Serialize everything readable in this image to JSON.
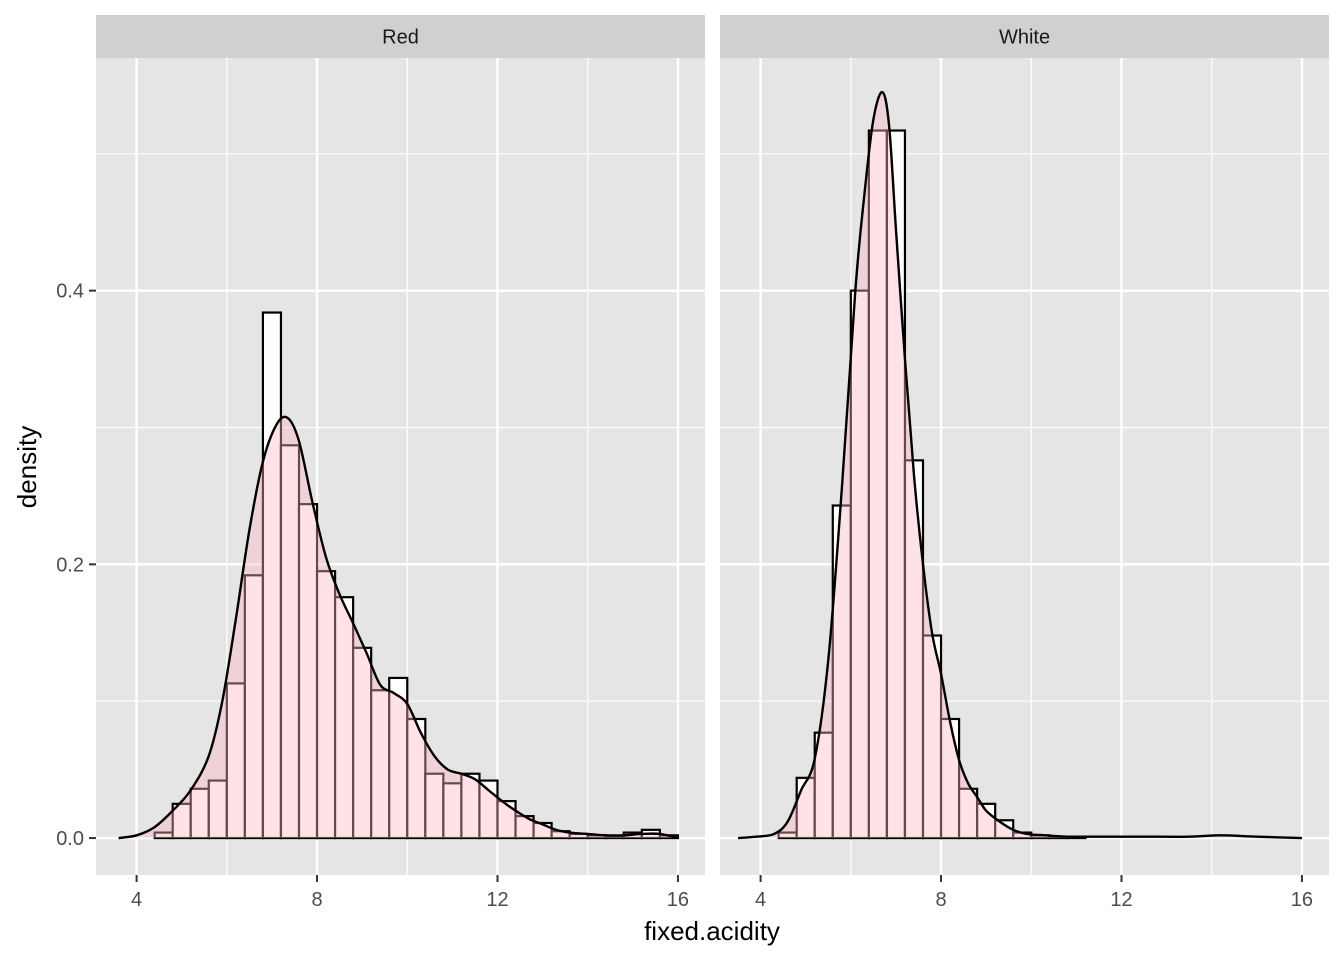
{
  "chart_data": {
    "type": "histogram-density-facets",
    "xlabel": "fixed.acidity",
    "ylabel": "density",
    "xlim": [
      3.1,
      16.6
    ],
    "ylim": [
      -0.027,
      0.57
    ],
    "x_ticks": [
      4,
      8,
      12,
      16
    ],
    "x_tick_labels": [
      "4",
      "8",
      "12",
      "16"
    ],
    "y_ticks": [
      0.0,
      0.2,
      0.4
    ],
    "y_tick_labels": [
      "0.0",
      "0.2",
      "0.4"
    ],
    "grid": true,
    "colors": {
      "panel_background": "#e5e5e5",
      "strip_background": "#d0d0d0",
      "grid": "#ffffff",
      "bar_outline": "#000000",
      "bar_fill": "#ffffff",
      "density_fill": "#ffb6c1",
      "density_line": "#000000"
    },
    "density_fill_alpha": 0.4,
    "bin_width": 0.4,
    "facets": [
      {
        "label": "Red",
        "bins_left": [
          4.4,
          4.8,
          5.2,
          5.6,
          6.0,
          6.4,
          6.8,
          7.2,
          7.6,
          8.0,
          8.4,
          8.8,
          9.2,
          9.6,
          10.0,
          10.4,
          10.8,
          11.2,
          11.6,
          12.0,
          12.4,
          12.8,
          13.2,
          13.6,
          14.0,
          14.4,
          14.8,
          15.2,
          15.6
        ],
        "bin_density": [
          0.004,
          0.025,
          0.036,
          0.042,
          0.113,
          0.192,
          0.384,
          0.287,
          0.244,
          0.195,
          0.176,
          0.139,
          0.108,
          0.117,
          0.087,
          0.047,
          0.04,
          0.047,
          0.042,
          0.027,
          0.016,
          0.011,
          0.005,
          0.003,
          0.002,
          0.001,
          0.004,
          0.006,
          0.002
        ],
        "density_x": [
          3.6,
          4.0,
          4.4,
          4.8,
          5.2,
          5.6,
          5.9,
          6.2,
          6.5,
          6.8,
          7.1,
          7.35,
          7.6,
          7.9,
          8.2,
          8.5,
          8.8,
          9.1,
          9.4,
          9.7,
          10.0,
          10.3,
          10.6,
          10.9,
          11.2,
          11.5,
          11.8,
          12.1,
          12.4,
          12.7,
          13.0,
          13.3,
          13.6,
          14.0,
          14.4,
          14.8,
          15.2,
          15.6,
          16.0
        ],
        "density_y": [
          0.0,
          0.002,
          0.008,
          0.02,
          0.035,
          0.06,
          0.1,
          0.16,
          0.225,
          0.275,
          0.302,
          0.307,
          0.29,
          0.245,
          0.205,
          0.178,
          0.157,
          0.135,
          0.112,
          0.106,
          0.098,
          0.077,
          0.06,
          0.05,
          0.047,
          0.043,
          0.035,
          0.027,
          0.02,
          0.014,
          0.01,
          0.006,
          0.004,
          0.003,
          0.002,
          0.002,
          0.003,
          0.003,
          0.0
        ]
      },
      {
        "label": "White",
        "bins_left": [
          4.4,
          4.8,
          5.2,
          5.6,
          6.0,
          6.4,
          6.8,
          7.2,
          7.6,
          8.0,
          8.4,
          8.8,
          9.2,
          9.6,
          10.0,
          10.4,
          10.8,
          11.2
        ],
        "bin_density": [
          0.004,
          0.044,
          0.077,
          0.243,
          0.4,
          0.517,
          0.517,
          0.276,
          0.148,
          0.087,
          0.036,
          0.025,
          0.013,
          0.004,
          0.002,
          0.001,
          0.001,
          0.0
        ],
        "density_x": [
          3.5,
          3.9,
          4.3,
          4.6,
          4.9,
          5.2,
          5.5,
          5.8,
          6.1,
          6.3,
          6.5,
          6.7,
          6.85,
          7.0,
          7.2,
          7.4,
          7.6,
          7.8,
          8.0,
          8.2,
          8.4,
          8.6,
          8.8,
          9.0,
          9.3,
          9.6,
          9.9,
          10.3,
          10.8,
          11.5,
          12.5,
          13.5,
          14.2,
          15.0,
          16.0
        ],
        "density_y": [
          0.0,
          0.001,
          0.003,
          0.012,
          0.035,
          0.058,
          0.13,
          0.255,
          0.4,
          0.47,
          0.525,
          0.545,
          0.52,
          0.445,
          0.35,
          0.265,
          0.2,
          0.15,
          0.12,
          0.085,
          0.057,
          0.04,
          0.03,
          0.02,
          0.012,
          0.006,
          0.003,
          0.002,
          0.001,
          0.001,
          0.001,
          0.001,
          0.002,
          0.001,
          0.0
        ]
      }
    ]
  }
}
